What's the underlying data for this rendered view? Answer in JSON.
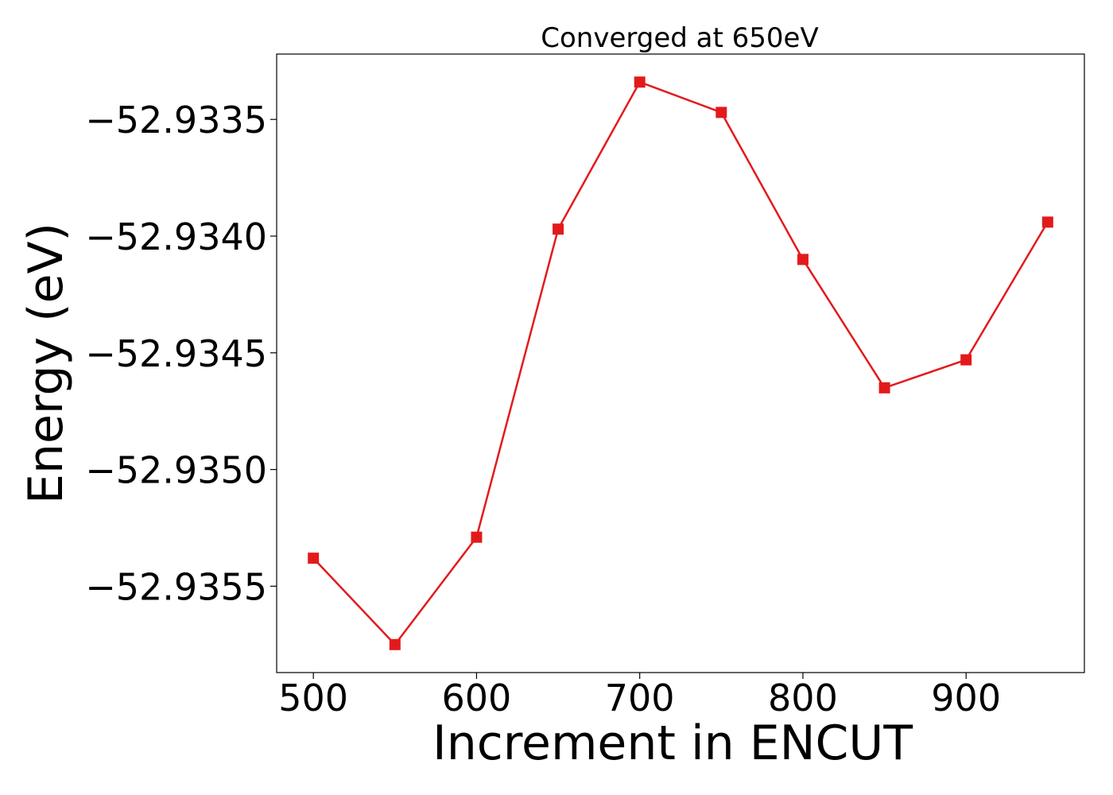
{
  "chart_data": {
    "type": "line",
    "title": "Converged at 650eV",
    "xlabel": "Increment in ENCUT",
    "ylabel": "Energy (eV)",
    "x": [
      500,
      550,
      600,
      650,
      700,
      750,
      800,
      850,
      900,
      950
    ],
    "series": [
      {
        "values": [
          -52.93538,
          -52.93575,
          -52.93529,
          -52.93397,
          -52.93334,
          -52.93347,
          -52.9341,
          -52.93465,
          -52.93453,
          -52.93394
        ],
        "color": "#e31a1c",
        "marker": "square"
      }
    ],
    "x_ticks": [
      500,
      600,
      700,
      800,
      900
    ],
    "x_tick_labels": [
      "500",
      "600",
      "700",
      "800",
      "900"
    ],
    "y_ticks": [
      -52.9355,
      -52.935,
      -52.9345,
      -52.934,
      -52.9335
    ],
    "y_tick_labels": [
      "−52.9355",
      "−52.9350",
      "−52.9345",
      "−52.9340",
      "−52.9335"
    ],
    "xlim": [
      477.5,
      972.5
    ],
    "ylim": [
      -52.93587,
      -52.93322
    ],
    "grid": false,
    "legend": "none"
  }
}
